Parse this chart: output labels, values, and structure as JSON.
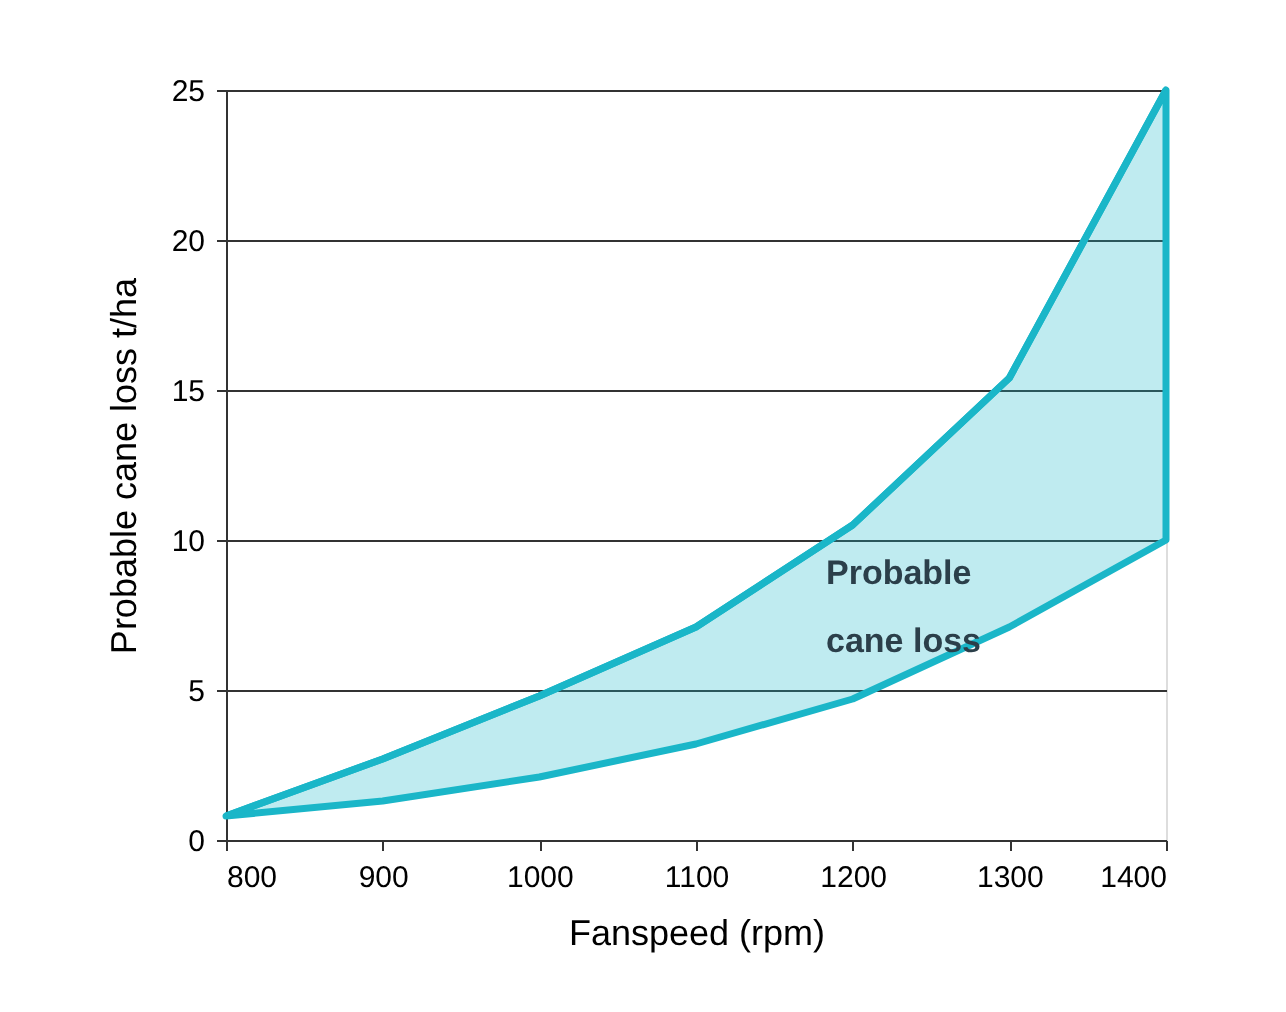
{
  "chart_data": {
    "type": "line",
    "xlabel": "Fanspeed (rpm)",
    "ylabel": "Probable cane loss t/ha",
    "x": [
      800,
      900,
      1000,
      1100,
      1200,
      1300,
      1400
    ],
    "series": [
      {
        "color": "#1ab6c8",
        "values": [
          0.8,
          2.7,
          4.8,
          7.1,
          10.5,
          15.4,
          25
        ],
        "lower": [
          0.8,
          1.3,
          2.1,
          3.2,
          4.7,
          7.1,
          10
        ],
        "upper": [
          0.8,
          2.7,
          4.8,
          7.1,
          10.5,
          15.4,
          25
        ]
      }
    ],
    "xlim": [
      800,
      1400
    ],
    "xticks": [
      800,
      900,
      1000,
      1100,
      1200,
      1300,
      1400
    ],
    "ylim": [
      0,
      25
    ],
    "yticks": [
      0,
      5,
      10,
      15,
      20,
      25
    ],
    "grid": "y",
    "annotations": [
      "Probable cane loss"
    ]
  }
}
